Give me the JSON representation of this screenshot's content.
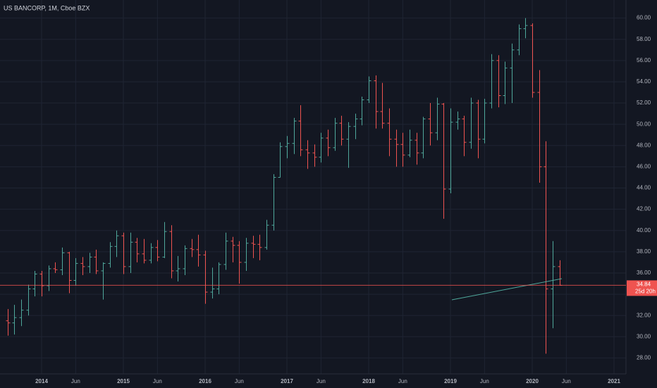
{
  "chart_data": {
    "type": "ohlc",
    "title": "US BANCORP, 1M, Cboe BZX",
    "x": [
      "2013-08",
      "2013-09",
      "2013-10",
      "2013-11",
      "2013-12",
      "2014-01",
      "2014-02",
      "2014-03",
      "2014-04",
      "2014-05",
      "2014-06",
      "2014-07",
      "2014-08",
      "2014-09",
      "2014-10",
      "2014-11",
      "2014-12",
      "2015-01",
      "2015-02",
      "2015-03",
      "2015-04",
      "2015-05",
      "2015-06",
      "2015-07",
      "2015-08",
      "2015-09",
      "2015-10",
      "2015-11",
      "2015-12",
      "2016-01",
      "2016-02",
      "2016-03",
      "2016-04",
      "2016-05",
      "2016-06",
      "2016-07",
      "2016-08",
      "2016-09",
      "2016-10",
      "2016-11",
      "2016-12",
      "2017-01",
      "2017-02",
      "2017-03",
      "2017-04",
      "2017-05",
      "2017-06",
      "2017-07",
      "2017-08",
      "2017-09",
      "2017-10",
      "2017-11",
      "2017-12",
      "2018-01",
      "2018-02",
      "2018-03",
      "2018-04",
      "2018-05",
      "2018-06",
      "2018-07",
      "2018-08",
      "2018-09",
      "2018-10",
      "2018-11",
      "2018-12",
      "2019-01",
      "2019-02",
      "2019-03",
      "2019-04",
      "2019-05",
      "2019-06",
      "2019-07",
      "2019-08",
      "2019-09",
      "2019-10",
      "2019-11",
      "2019-12",
      "2020-01",
      "2020-02",
      "2020-03",
      "2020-04",
      "2020-05"
    ],
    "open": [
      31.5,
      31.3,
      31.8,
      32.5,
      34.5,
      35.9,
      34.8,
      36.4,
      36.3,
      37.9,
      35.3,
      36.9,
      36.6,
      37.5,
      36.2,
      36.9,
      38.5,
      39.5,
      36.6,
      38.9,
      37.8,
      37.2,
      38.4,
      37.5,
      39.9,
      36.2,
      36.4,
      38.3,
      38.2,
      37.7,
      34.2,
      34.5,
      36.8,
      39.0,
      38.6,
      37.0,
      38.8,
      38.7,
      38.4,
      40.5,
      45.0,
      47.9,
      48.2,
      50.3,
      47.6,
      47.3,
      46.9,
      48.7,
      47.8,
      50.1,
      48.6,
      49.8,
      50.5,
      52.3,
      54.1,
      51.2,
      50.1,
      48.6,
      48.1,
      47.1,
      48.5,
      47.3,
      50.5,
      49.2,
      51.9,
      43.9,
      50.2,
      50.5,
      48.3,
      52.0,
      48.6,
      52.0,
      56.0,
      52.7,
      55.3,
      57.0,
      59.0,
      59.3,
      53.0,
      46.0,
      34.5,
      36.6
    ],
    "high": [
      32.6,
      33.0,
      33.5,
      34.9,
      36.2,
      36.2,
      36.7,
      37.0,
      38.4,
      38.0,
      37.4,
      37.5,
      37.9,
      38.2,
      37.0,
      38.9,
      40.0,
      39.8,
      39.8,
      39.3,
      39.2,
      38.8,
      39.1,
      40.8,
      40.5,
      37.6,
      38.6,
      39.2,
      39.6,
      38.1,
      36.5,
      37.0,
      39.8,
      39.4,
      39.0,
      39.3,
      39.5,
      39.6,
      41.0,
      45.3,
      48.3,
      48.9,
      50.6,
      51.8,
      48.5,
      48.1,
      49.2,
      49.5,
      50.6,
      50.8,
      50.2,
      51.0,
      52.6,
      54.5,
      54.6,
      53.9,
      51.5,
      49.5,
      49.2,
      49.5,
      49.2,
      50.7,
      52.0,
      52.5,
      52.0,
      51.5,
      51.2,
      50.8,
      52.5,
      52.3,
      52.4,
      56.6,
      56.5,
      55.9,
      57.6,
      59.4,
      60.0,
      59.5,
      55.1,
      48.4,
      39.0,
      37.2
    ],
    "low": [
      30.1,
      30.2,
      31.0,
      32.0,
      33.8,
      33.8,
      34.3,
      36.0,
      35.8,
      34.1,
      34.8,
      35.8,
      36.0,
      35.9,
      33.5,
      36.5,
      37.5,
      35.9,
      36.0,
      37.0,
      36.9,
      36.9,
      37.1,
      37.4,
      35.5,
      35.2,
      35.8,
      37.5,
      36.6,
      33.1,
      33.6,
      34.0,
      36.3,
      37.0,
      35.0,
      36.2,
      37.4,
      37.2,
      38.2,
      40.0,
      45.0,
      46.8,
      47.2,
      47.0,
      45.8,
      46.0,
      46.4,
      47.0,
      47.5,
      48.0,
      45.9,
      48.6,
      49.9,
      52.0,
      49.6,
      49.6,
      47.0,
      46.0,
      46.0,
      46.9,
      46.2,
      46.8,
      48.0,
      48.5,
      41.1,
      43.5,
      49.5,
      47.0,
      47.7,
      46.8,
      48.2,
      51.5,
      51.6,
      51.9,
      52.0,
      56.5,
      58.1,
      52.5,
      44.5,
      28.4,
      30.8,
      34.8
    ],
    "close": [
      31.3,
      31.8,
      32.5,
      34.5,
      35.9,
      34.8,
      36.4,
      36.3,
      37.9,
      35.3,
      36.9,
      36.6,
      37.5,
      36.2,
      36.9,
      38.5,
      39.5,
      36.6,
      38.9,
      37.8,
      37.2,
      38.4,
      37.5,
      39.9,
      36.2,
      36.4,
      38.3,
      38.2,
      37.7,
      34.2,
      34.5,
      36.8,
      39.0,
      38.6,
      37.0,
      38.8,
      38.7,
      38.4,
      40.5,
      45.0,
      47.9,
      48.2,
      50.3,
      47.6,
      47.3,
      46.9,
      48.7,
      47.8,
      50.1,
      48.6,
      49.8,
      50.5,
      52.3,
      54.1,
      51.2,
      50.1,
      48.6,
      48.1,
      47.1,
      48.5,
      47.3,
      50.5,
      49.2,
      51.9,
      43.9,
      50.2,
      50.5,
      48.3,
      52.0,
      48.6,
      52.0,
      56.0,
      52.7,
      55.3,
      57.0,
      59.0,
      59.3,
      53.0,
      46.0,
      34.5,
      36.6,
      34.84
    ],
    "up_color": "#4fa79b",
    "down_color": "#ef5350",
    "ylim": [
      26.5,
      61.7
    ],
    "yticks": [
      {
        "value": 28,
        "label": "28.00"
      },
      {
        "value": 30,
        "label": "30.00"
      },
      {
        "value": 32,
        "label": "32.00"
      },
      {
        "value": 34,
        "label": "34.00"
      },
      {
        "value": 36,
        "label": "36.00"
      },
      {
        "value": 38,
        "label": "38.00"
      },
      {
        "value": 40,
        "label": "40.00"
      },
      {
        "value": 42,
        "label": "42.00"
      },
      {
        "value": 44,
        "label": "44.00"
      },
      {
        "value": 46,
        "label": "46.00"
      },
      {
        "value": 48,
        "label": "48.00"
      },
      {
        "value": 50,
        "label": "50.00"
      },
      {
        "value": 52,
        "label": "52.00"
      },
      {
        "value": 54,
        "label": "54.00"
      },
      {
        "value": 56,
        "label": "56.00"
      },
      {
        "value": 58,
        "label": "58.00"
      },
      {
        "value": 60,
        "label": "60.00"
      }
    ],
    "xticks": [
      {
        "value": "2014-01",
        "label": "2014"
      },
      {
        "value": "2014-06",
        "label": "Jun"
      },
      {
        "value": "2015-01",
        "label": "2015"
      },
      {
        "value": "2015-06",
        "label": "Jun"
      },
      {
        "value": "2016-01",
        "label": "2016"
      },
      {
        "value": "2016-06",
        "label": "Jun"
      },
      {
        "value": "2017-01",
        "label": "2017"
      },
      {
        "value": "2017-06",
        "label": "Jun"
      },
      {
        "value": "2018-01",
        "label": "2018"
      },
      {
        "value": "2018-06",
        "label": "Jun"
      },
      {
        "value": "2019-01",
        "label": "2019"
      },
      {
        "value": "2019-06",
        "label": "Jun"
      },
      {
        "value": "2020-01",
        "label": "2020"
      },
      {
        "value": "2020-06",
        "label": "Jun"
      },
      {
        "value": "2021-01",
        "label": "2021"
      }
    ],
    "grid": true,
    "price_label": {
      "value": 34.84,
      "countdown": "25d 20h",
      "color": "#ef5350"
    }
  }
}
